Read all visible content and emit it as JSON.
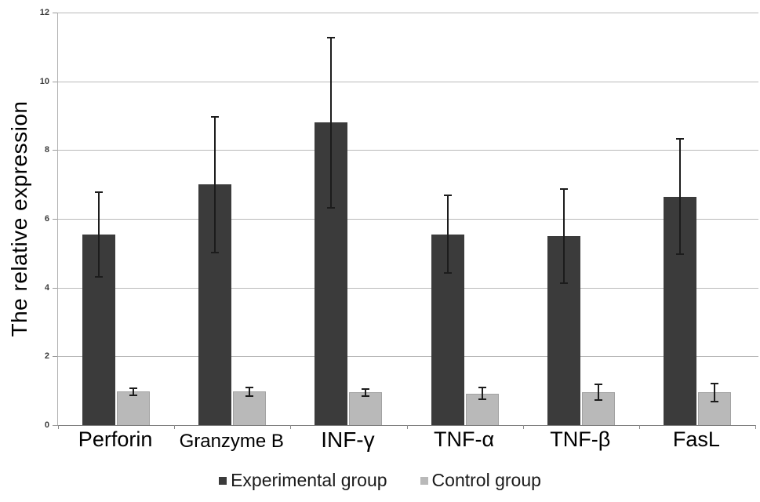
{
  "chart_data": {
    "type": "bar",
    "title": "",
    "xlabel": "",
    "ylabel": "The relative expression",
    "ylim": [
      0,
      12
    ],
    "yticks": [
      0,
      2,
      4,
      6,
      8,
      10,
      12
    ],
    "grid": true,
    "legend_position": "bottom",
    "categories": [
      "Perforin",
      "Granzyme B",
      "INF-γ",
      "TNF-α",
      "TNF-β",
      "FasL"
    ],
    "series": [
      {
        "name": "Experimental group",
        "color": "#3b3b3b",
        "values": [
          5.55,
          7.0,
          8.8,
          5.55,
          5.5,
          6.65
        ],
        "errors": [
          1.25,
          2.0,
          2.5,
          1.15,
          1.4,
          1.7
        ]
      },
      {
        "name": "Control group",
        "color": "#b9b9b9",
        "values": [
          0.97,
          0.97,
          0.95,
          0.92,
          0.95,
          0.95
        ],
        "errors": [
          0.12,
          0.15,
          0.12,
          0.2,
          0.25,
          0.28
        ]
      }
    ],
    "colors": {
      "gridline": "#b9b9b9",
      "axis": "#8a8a8a",
      "error_bar": "#1c1c1c",
      "text": "#000000"
    }
  }
}
